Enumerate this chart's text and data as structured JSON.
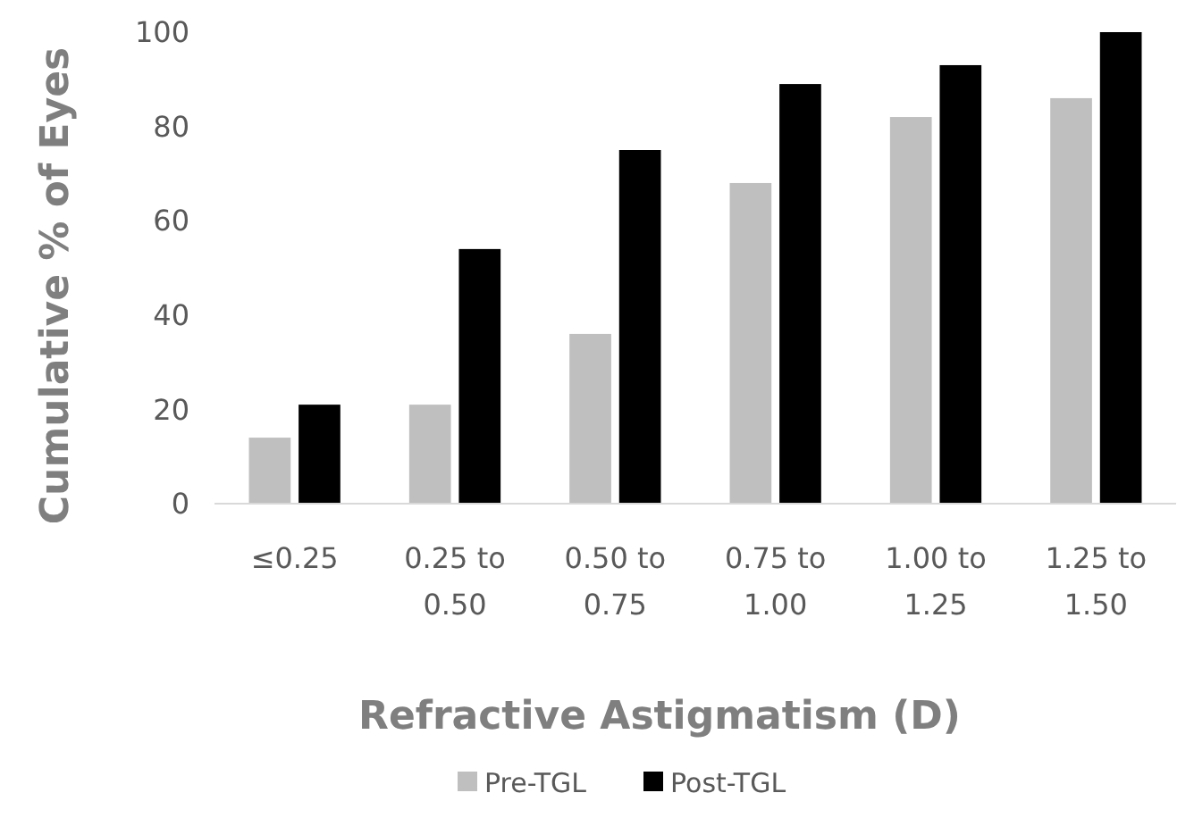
{
  "chart_data": {
    "type": "bar",
    "xlabel": "Refractive Astigmatism (D)",
    "ylabel": "Cumulative % of Eyes",
    "categories": [
      "≤0.25",
      "0.25 to 0.50",
      "0.50 to 0.75",
      "0.75 to 1.00",
      "1.00 to 1.25",
      "1.25 to 1.50"
    ],
    "series": [
      {
        "name": "Pre-TGL",
        "color": "#bfbfbf",
        "values": [
          14,
          21,
          36,
          68,
          82,
          86
        ]
      },
      {
        "name": "Post-TGL",
        "color": "#000000",
        "values": [
          21,
          54,
          75,
          89,
          93,
          100
        ]
      }
    ],
    "ylim": [
      0,
      100
    ],
    "yticks": [
      0,
      20,
      40,
      60,
      80,
      100
    ],
    "grid": false,
    "legend": "bottom"
  }
}
